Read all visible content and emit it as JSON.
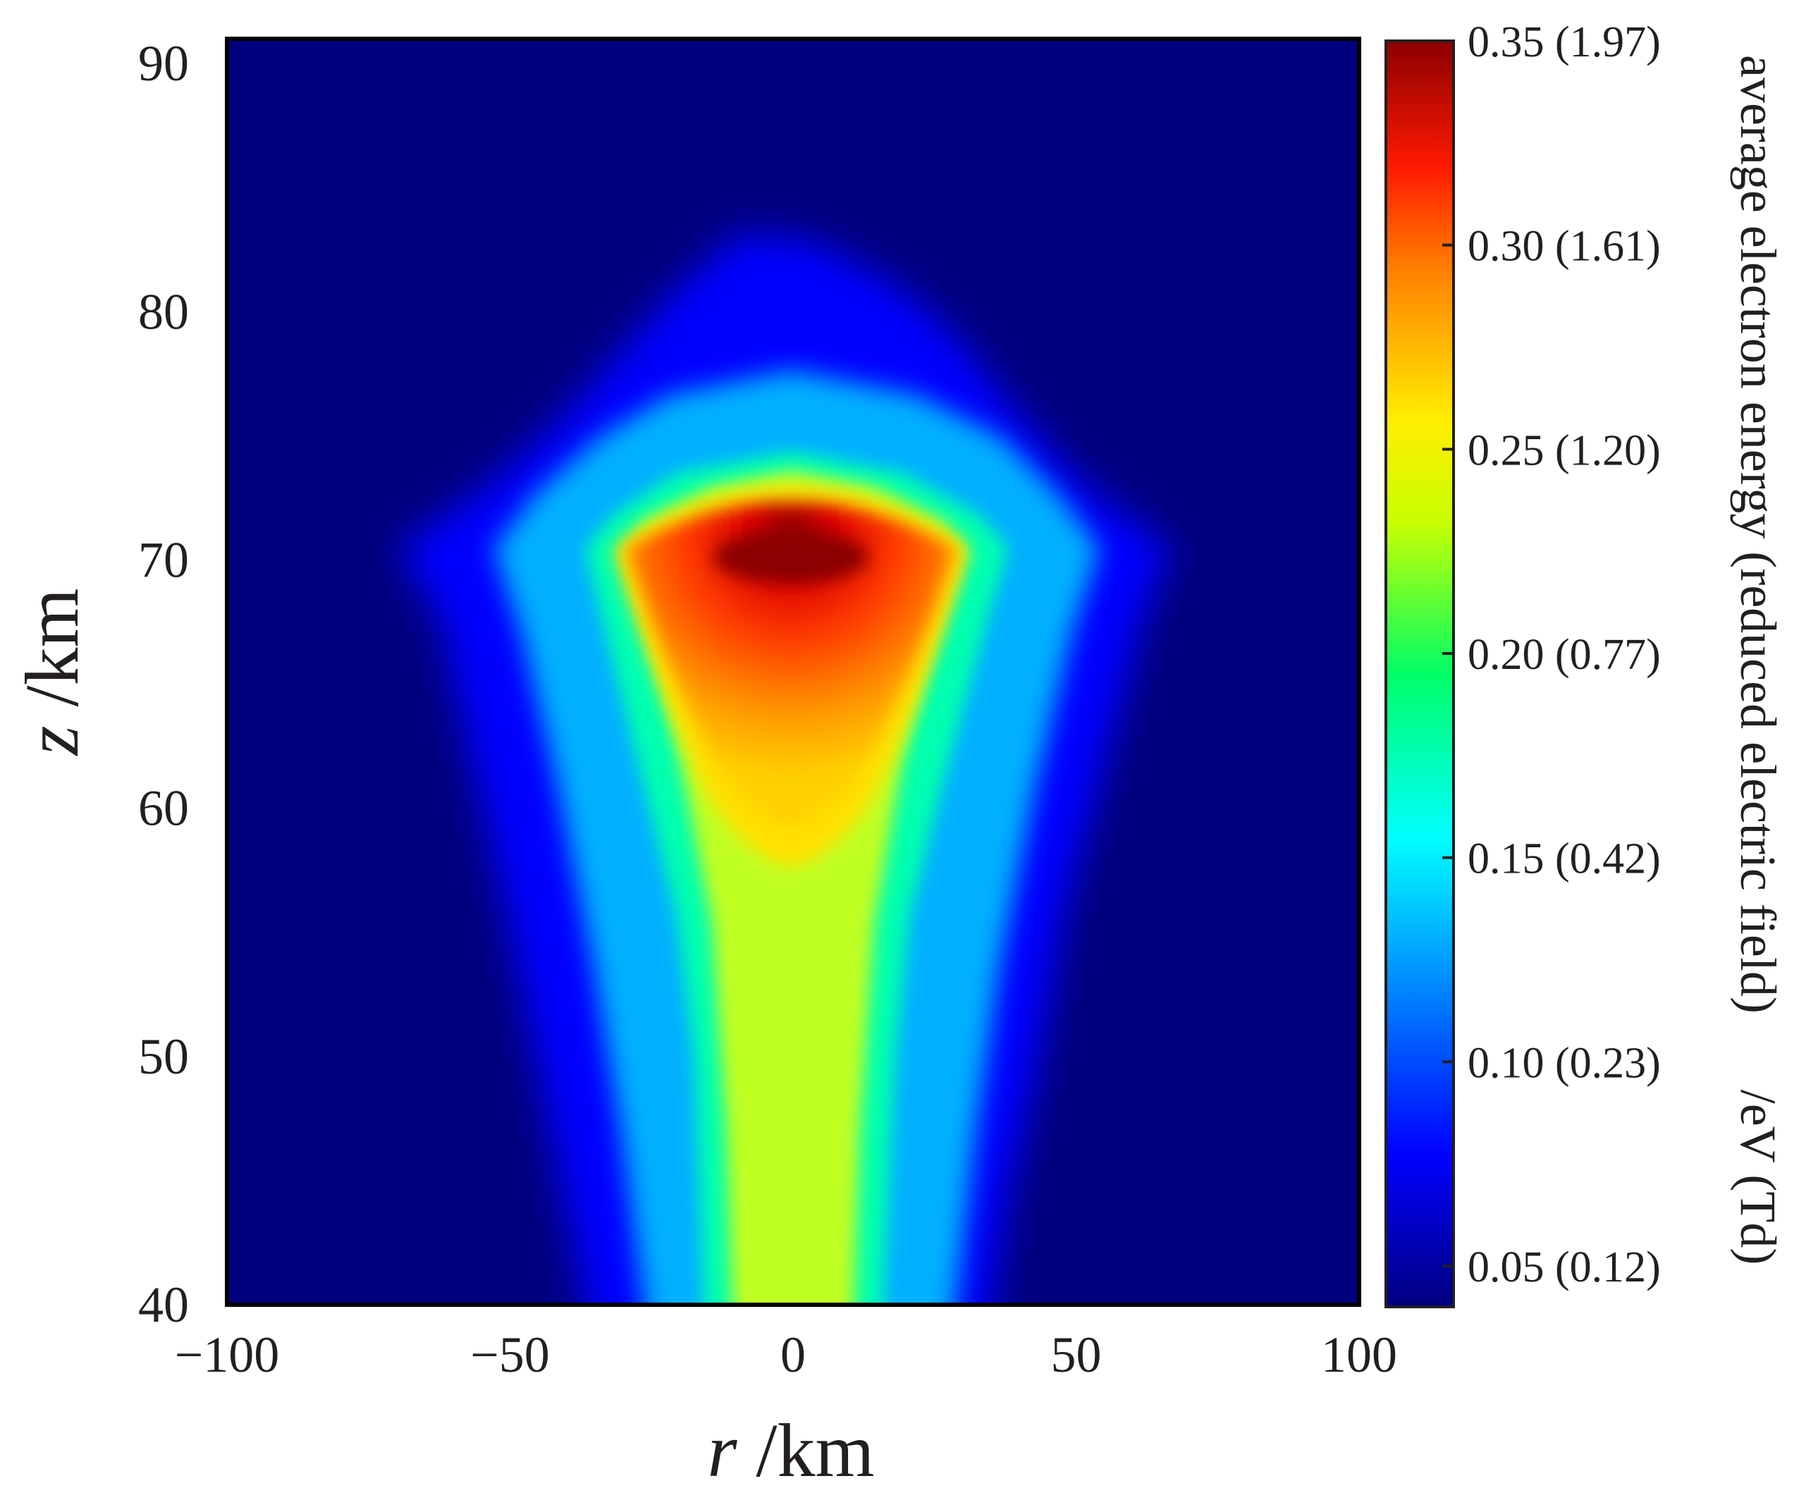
{
  "chart_data": {
    "type": "heatmap",
    "xlabel": {
      "var": "r",
      "unit": " /km"
    },
    "ylabel": {
      "var": "z",
      "unit": "  /km"
    },
    "xlim": [
      -100,
      100
    ],
    "ylim": [
      40,
      91
    ],
    "x_ticks": [
      {
        "value": -100,
        "label": "−100"
      },
      {
        "value": -50,
        "label": "−50"
      },
      {
        "value": 0,
        "label": "0"
      },
      {
        "value": 50,
        "label": "50"
      },
      {
        "value": 100,
        "label": "100"
      }
    ],
    "y_ticks": [
      {
        "value": 40,
        "label": "40"
      },
      {
        "value": 50,
        "label": "50"
      },
      {
        "value": 60,
        "label": "60"
      },
      {
        "value": 70,
        "label": "70"
      },
      {
        "value": 80,
        "label": "80"
      },
      {
        "value": 90,
        "label": "90"
      }
    ],
    "colorbar": {
      "title": "average electron energy (reduced electric field)",
      "unit": "/eV (Td)",
      "range": [
        0.04,
        0.35
      ],
      "colormap": "jet",
      "ticks": [
        {
          "value": 0.35,
          "label": "0.35 (1.97)"
        },
        {
          "value": 0.3,
          "label": "0.30 (1.61)"
        },
        {
          "value": 0.25,
          "label": "0.25 (1.20)"
        },
        {
          "value": 0.2,
          "label": "0.20 (0.77)"
        },
        {
          "value": 0.15,
          "label": "0.15  (0.42)"
        },
        {
          "value": 0.1,
          "label": "0.10  (0.23)"
        },
        {
          "value": 0.05,
          "label": "0.05  (0.12)"
        }
      ]
    },
    "field_profile": [
      {
        "z": 40,
        "halfwidth_by_level": {
          "0.05": 36,
          "0.10": 24,
          "0.15": 17,
          "0.20": 10
        }
      },
      {
        "z": 55,
        "halfwidth_by_level": {
          "0.05": 50,
          "0.10": 36,
          "0.15": 26,
          "0.20": 13,
          "0.24": 6
        }
      },
      {
        "z": 70.5,
        "halfwidth_by_level": {
          "0.05": 66,
          "0.10": 52,
          "0.15": 36,
          "0.20": 31,
          "0.25": 26,
          "0.30": 18,
          "0.34": 7
        }
      },
      {
        "z": 83,
        "halfwidth_by_level": {
          "0.05": 0
        }
      }
    ],
    "peak": {
      "r": 0,
      "z": 70.2,
      "value": 0.35
    }
  }
}
